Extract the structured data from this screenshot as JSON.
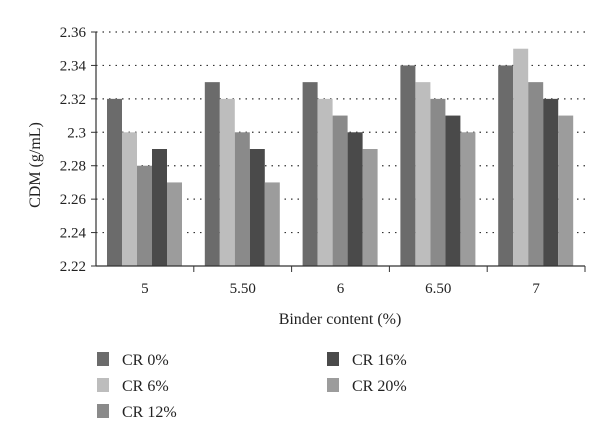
{
  "chart_data": {
    "type": "bar",
    "title": "",
    "xlabel": "Binder content (%)",
    "ylabel": "CDM (g/mL)",
    "categories": [
      "5",
      "5.50",
      "6",
      "6.50",
      "7"
    ],
    "ylim": [
      2.22,
      2.36
    ],
    "yticks": [
      "2.22",
      "2.24",
      "2.26",
      "2.28",
      "2.3",
      "2.32",
      "2.34",
      "2.36"
    ],
    "grid": "horizontal dotted",
    "legend_position": "bottom",
    "series": [
      {
        "name": "CR 0%",
        "color": "#6b6b6b",
        "values": [
          2.32,
          2.33,
          2.33,
          2.34,
          2.34
        ]
      },
      {
        "name": "CR 6%",
        "color": "#bdbdbd",
        "values": [
          2.3,
          2.32,
          2.32,
          2.33,
          2.35
        ]
      },
      {
        "name": "CR 12%",
        "color": "#8a8a8a",
        "values": [
          2.28,
          2.3,
          2.31,
          2.32,
          2.33
        ]
      },
      {
        "name": "CR 16%",
        "color": "#4a4a4a",
        "values": [
          2.29,
          2.29,
          2.3,
          2.31,
          2.32
        ]
      },
      {
        "name": "CR 20%",
        "color": "#9c9c9c",
        "values": [
          2.27,
          2.27,
          2.29,
          2.3,
          2.31
        ]
      }
    ]
  }
}
